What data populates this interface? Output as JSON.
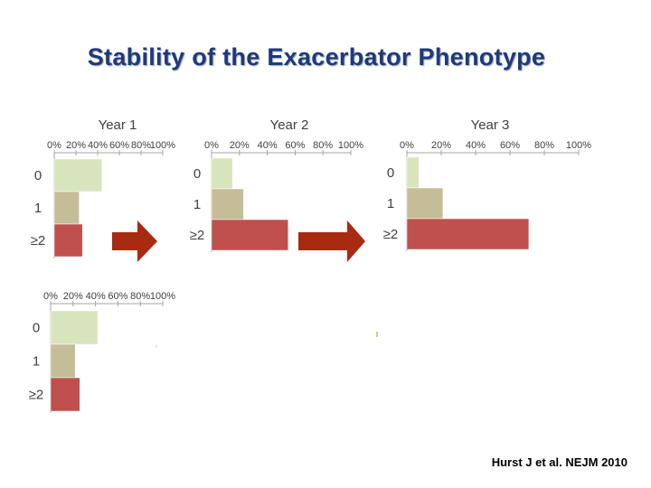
{
  "slide": {
    "title": "Stability of the Exacerbator Phenotype",
    "citation": "Hurst J et al. NEJM 2010"
  },
  "colors": {
    "zero": "#d8e4bc",
    "one": "#c4bd97",
    "two_plus": "#c0504d",
    "arrow": "#a82a10",
    "title": "#1f3a7a"
  },
  "chart_data": [
    {
      "type": "bar",
      "orientation": "horizontal",
      "title": "Year 1",
      "categories": [
        "0",
        "1",
        "≥2"
      ],
      "values": [
        44,
        23,
        26
      ],
      "xlim": [
        0,
        100
      ],
      "xticks": [
        "0%",
        "20%",
        "40%",
        "60%",
        "80%",
        "100%"
      ]
    },
    {
      "type": "bar",
      "orientation": "horizontal",
      "title": "Year 2",
      "categories": [
        "0",
        "1",
        "≥2"
      ],
      "values": [
        15,
        23,
        55
      ],
      "xlim": [
        0,
        100
      ],
      "xticks": [
        "0%",
        "20%",
        "40%",
        "60%",
        "80%",
        "100%"
      ]
    },
    {
      "type": "bar",
      "orientation": "horizontal",
      "title": "Year 3",
      "categories": [
        "0",
        "1",
        "≥2"
      ],
      "values": [
        7,
        21,
        71
      ],
      "xlim": [
        0,
        100
      ],
      "xticks": [
        "0%",
        "20%",
        "40%",
        "60%",
        "80%",
        "100%"
      ]
    },
    {
      "type": "bar",
      "orientation": "horizontal",
      "title": "",
      "categories": [
        "0",
        "1",
        "≥2"
      ],
      "values": [
        42,
        22,
        26
      ],
      "xlim": [
        0,
        100
      ],
      "xticks": [
        "0%",
        "20%",
        "40%",
        "60%",
        "80%",
        "100%"
      ]
    }
  ]
}
